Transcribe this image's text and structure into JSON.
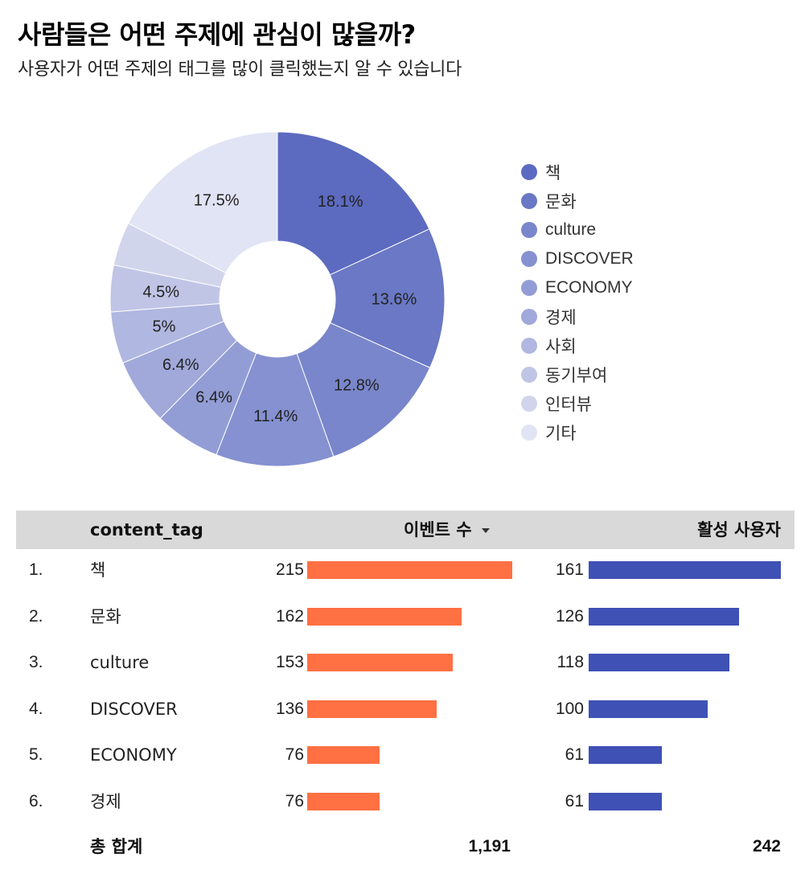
{
  "title": "사람들은 어떤 주제에 관심이 많을까?",
  "subtitle": "사용자가 어떤 주제의 태그를 많이 클릭했는지 알 수 있습니다",
  "chart_data": {
    "type": "pie",
    "donut": true,
    "categories": [
      "책",
      "문화",
      "culture",
      "DISCOVER",
      "ECONOMY",
      "경제",
      "사회",
      "동기부여",
      "인터뷰",
      "기타"
    ],
    "values": [
      18.1,
      13.6,
      12.8,
      11.4,
      6.4,
      6.4,
      5.0,
      4.5,
      4.2,
      17.5
    ],
    "labels": [
      "18.1%",
      "13.6%",
      "12.8%",
      "11.4%",
      "6.4%",
      "6.4%",
      "5%",
      "4.5%",
      "",
      "17.5%"
    ],
    "colors": [
      "#5c6bc0",
      "#6a78c5",
      "#7986cb",
      "#8591d0",
      "#939dd5",
      "#a0a9da",
      "#b0b7e0",
      "#c0c5e6",
      "#d1d5ec",
      "#e1e4f4"
    ],
    "legend_position": "right"
  },
  "table": {
    "headers": {
      "tag": "content_tag",
      "events": "이벤트 수",
      "users": "활성 사용자"
    },
    "rows": [
      {
        "rank": "1.",
        "tag": "책",
        "events": 215,
        "users": 161
      },
      {
        "rank": "2.",
        "tag": "문화",
        "events": 162,
        "users": 126
      },
      {
        "rank": "3.",
        "tag": "culture",
        "events": 153,
        "users": 118
      },
      {
        "rank": "4.",
        "tag": "DISCOVER",
        "events": 136,
        "users": 100
      },
      {
        "rank": "5.",
        "tag": "ECONOMY",
        "events": 76,
        "users": 61
      },
      {
        "rank": "6.",
        "tag": "경제",
        "events": 76,
        "users": 61
      }
    ],
    "total": {
      "label": "총 합계",
      "events": "1,191",
      "users": "242"
    },
    "colors": {
      "events_bar": "#ff7043",
      "users_bar": "#3f51b5"
    }
  }
}
